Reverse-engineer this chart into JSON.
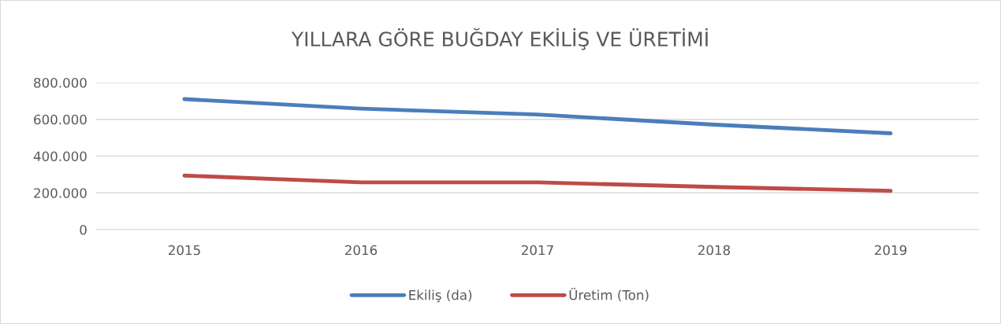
{
  "chart_data": {
    "type": "line",
    "title": "YILLARA GÖRE BUĞDAY EKİLİŞ VE ÜRETİMİ",
    "categories": [
      "2015",
      "2016",
      "2017",
      "2018",
      "2019"
    ],
    "series": [
      {
        "name": "Ekiliş (da)",
        "color": "#4a7ebb",
        "values": [
          710000,
          658000,
          626000,
          571000,
          524000
        ]
      },
      {
        "name": "Üretim (Ton)",
        "color": "#be4b48",
        "values": [
          294000,
          257000,
          257000,
          232000,
          211000
        ]
      }
    ],
    "ylim": [
      0,
      800000
    ],
    "yticks": [
      0,
      {
        "value": 200000,
        "label": "200.000"
      },
      {
        "value": 400000,
        "label": "400.000"
      },
      {
        "value": 600000,
        "label": "600.000"
      },
      {
        "value": 800000,
        "label": "800.000"
      }
    ],
    "grid": "y",
    "legend": "bottom",
    "marker": "none",
    "line_style": "solid"
  }
}
